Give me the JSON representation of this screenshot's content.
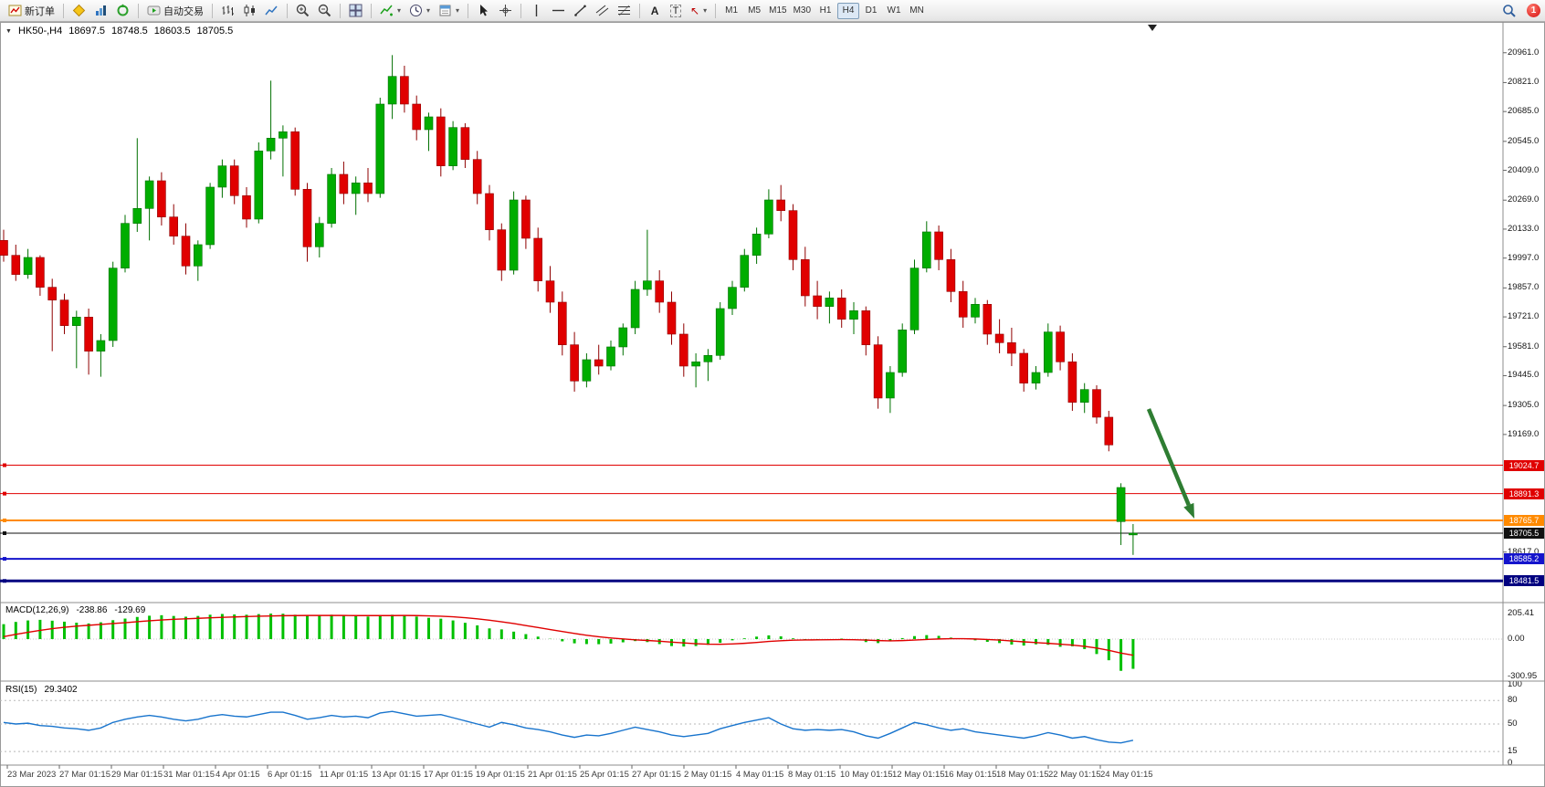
{
  "toolbar": {
    "new_order_label": "新订单",
    "autotrading_label": "自动交易",
    "timeframes": [
      "M1",
      "M5",
      "M15",
      "M30",
      "H1",
      "H4",
      "D1",
      "W1",
      "MN"
    ],
    "active_timeframe": "H4",
    "notification_count": "1",
    "glyphs": {
      "caret": "▾",
      "text_tool": "A",
      "label_tool": "T",
      "arrow_tool": "↖",
      "collapse": "▼"
    }
  },
  "chart_header": {
    "symbol_period": "HK50-,H4",
    "open": "18697.5",
    "high": "18748.5",
    "low": "18603.5",
    "close": "18705.5"
  },
  "price_axis": {
    "labels": [
      20961.0,
      20821.0,
      20685.0,
      20545.0,
      20409.0,
      20269.0,
      20133.0,
      19997.0,
      19857.0,
      19721.0,
      19581.0,
      19445.0,
      19305.0,
      19169.0,
      18617.0
    ]
  },
  "levels": [
    {
      "label": "19024.7",
      "price": 19024.7,
      "color": "#e00000",
      "width": 1
    },
    {
      "label": "18891.3",
      "price": 18891.3,
      "color": "#e00000",
      "width": 1
    },
    {
      "label": "18765.7",
      "price": 18765.7,
      "color": "#ff8a00",
      "width": 2
    },
    {
      "label": "18705.5",
      "price": 18705.5,
      "color": "#111111",
      "width": 1
    },
    {
      "label": "18585.2",
      "price": 18585.2,
      "color": "#1414cc",
      "width": 2
    },
    {
      "label": "18481.5",
      "price": 18481.5,
      "color": "#000080",
      "width": 3
    }
  ],
  "annotation": {
    "type": "arrow",
    "color": "#2e7d32",
    "from": [
      1258,
      448
    ],
    "to": [
      1308,
      568
    ]
  },
  "chart_data": {
    "type": "candlestick",
    "symbol": "HK50-",
    "timeframe": "H4",
    "up_color": "#00ad00",
    "up_border": "#007000",
    "down_color": "#e00000",
    "down_border": "#8f0000",
    "ylim": [
      18380,
      21080
    ],
    "dates": [
      "23 Mar 2023",
      "27 Mar 01:15",
      "29 Mar 01:15",
      "31 Mar 01:15",
      "4 Apr 01:15",
      "6 Apr 01:15",
      "11 Apr 01:15",
      "13 Apr 01:15",
      "17 Apr 01:15",
      "19 Apr 01:15",
      "21 Apr 01:15",
      "25 Apr 01:15",
      "27 Apr 01:15",
      "2 May 01:15",
      "4 May 01:15",
      "8 May 01:15",
      "10 May 01:15",
      "12 May 01:15",
      "16 May 01:15",
      "18 May 01:15",
      "22 May 01:15",
      "24 May 01:15"
    ],
    "candles": [
      [
        20080,
        20130,
        19980,
        20010
      ],
      [
        20010,
        20060,
        19890,
        19920
      ],
      [
        19920,
        20040,
        19900,
        20000
      ],
      [
        20000,
        20010,
        19820,
        19860
      ],
      [
        19860,
        19900,
        19560,
        19800
      ],
      [
        19800,
        19830,
        19640,
        19680
      ],
      [
        19680,
        19750,
        19480,
        19720
      ],
      [
        19720,
        19760,
        19450,
        19560
      ],
      [
        19560,
        19640,
        19440,
        19610
      ],
      [
        19610,
        19980,
        19580,
        19950
      ],
      [
        19950,
        20200,
        19930,
        20160
      ],
      [
        20160,
        20560,
        20120,
        20230
      ],
      [
        20230,
        20380,
        20080,
        20360
      ],
      [
        20360,
        20400,
        20150,
        20190
      ],
      [
        20190,
        20250,
        20060,
        20100
      ],
      [
        20100,
        20160,
        19920,
        19960
      ],
      [
        19960,
        20080,
        19890,
        20060
      ],
      [
        20060,
        20350,
        20040,
        20330
      ],
      [
        20330,
        20460,
        20280,
        20430
      ],
      [
        20430,
        20460,
        20250,
        20290
      ],
      [
        20290,
        20330,
        20140,
        20180
      ],
      [
        20180,
        20540,
        20160,
        20500
      ],
      [
        20500,
        20830,
        20460,
        20560
      ],
      [
        20560,
        20620,
        20380,
        20590
      ],
      [
        20590,
        20610,
        20290,
        20320
      ],
      [
        20320,
        20350,
        19980,
        20050
      ],
      [
        20050,
        20190,
        20000,
        20160
      ],
      [
        20160,
        20420,
        20140,
        20390
      ],
      [
        20390,
        20450,
        20250,
        20300
      ],
      [
        20300,
        20380,
        20200,
        20350
      ],
      [
        20350,
        20420,
        20260,
        20300
      ],
      [
        20300,
        20750,
        20280,
        20720
      ],
      [
        20720,
        20950,
        20650,
        20850
      ],
      [
        20850,
        20900,
        20680,
        20720
      ],
      [
        20720,
        20760,
        20550,
        20600
      ],
      [
        20600,
        20680,
        20500,
        20660
      ],
      [
        20660,
        20700,
        20380,
        20430
      ],
      [
        20430,
        20640,
        20410,
        20610
      ],
      [
        20610,
        20630,
        20420,
        20460
      ],
      [
        20460,
        20500,
        20250,
        20300
      ],
      [
        20300,
        20340,
        20080,
        20130
      ],
      [
        20130,
        20160,
        19890,
        19940
      ],
      [
        19940,
        20310,
        19920,
        20270
      ],
      [
        20270,
        20290,
        20040,
        20090
      ],
      [
        20090,
        20140,
        19840,
        19890
      ],
      [
        19890,
        19960,
        19740,
        19790
      ],
      [
        19790,
        19840,
        19540,
        19590
      ],
      [
        19590,
        19650,
        19370,
        19420
      ],
      [
        19420,
        19550,
        19390,
        19520
      ],
      [
        19520,
        19590,
        19450,
        19490
      ],
      [
        19490,
        19610,
        19470,
        19580
      ],
      [
        19580,
        19690,
        19540,
        19670
      ],
      [
        19670,
        19890,
        19640,
        19850
      ],
      [
        19850,
        20130,
        19820,
        19890
      ],
      [
        19890,
        19940,
        19740,
        19790
      ],
      [
        19790,
        19840,
        19590,
        19640
      ],
      [
        19640,
        19690,
        19440,
        19490
      ],
      [
        19490,
        19550,
        19390,
        19510
      ],
      [
        19510,
        19570,
        19420,
        19540
      ],
      [
        19540,
        19790,
        19520,
        19760
      ],
      [
        19760,
        19890,
        19730,
        19860
      ],
      [
        19860,
        20040,
        19840,
        20010
      ],
      [
        20010,
        20140,
        19970,
        20110
      ],
      [
        20110,
        20320,
        20090,
        20270
      ],
      [
        20270,
        20340,
        20170,
        20220
      ],
      [
        20220,
        20250,
        19940,
        19990
      ],
      [
        19990,
        20050,
        19770,
        19820
      ],
      [
        19820,
        19890,
        19710,
        19770
      ],
      [
        19770,
        19840,
        19690,
        19810
      ],
      [
        19810,
        19850,
        19670,
        19710
      ],
      [
        19710,
        19790,
        19640,
        19750
      ],
      [
        19750,
        19770,
        19540,
        19590
      ],
      [
        19590,
        19630,
        19290,
        19340
      ],
      [
        19340,
        19490,
        19270,
        19460
      ],
      [
        19460,
        19690,
        19440,
        19660
      ],
      [
        19660,
        19990,
        19640,
        19950
      ],
      [
        19950,
        20170,
        19930,
        20120
      ],
      [
        20120,
        20150,
        19940,
        19990
      ],
      [
        19990,
        20040,
        19790,
        19840
      ],
      [
        19840,
        19890,
        19670,
        19720
      ],
      [
        19720,
        19810,
        19690,
        19780
      ],
      [
        19780,
        19800,
        19590,
        19640
      ],
      [
        19640,
        19710,
        19550,
        19600
      ],
      [
        19600,
        19670,
        19490,
        19550
      ],
      [
        19550,
        19570,
        19370,
        19410
      ],
      [
        19410,
        19490,
        19380,
        19460
      ],
      [
        19460,
        19690,
        19440,
        19650
      ],
      [
        19650,
        19680,
        19470,
        19510
      ],
      [
        19510,
        19550,
        19280,
        19320
      ],
      [
        19320,
        19410,
        19270,
        19380
      ],
      [
        19380,
        19400,
        19220,
        19250
      ],
      [
        19250,
        19280,
        19090,
        19120
      ],
      [
        18760,
        18940,
        18650,
        18920
      ],
      [
        18697.5,
        18748.5,
        18603.5,
        18705.5
      ]
    ],
    "macd": {
      "label": "MACD(12,26,9)",
      "values": [
        "-238.86",
        "-129.69"
      ],
      "axis": [
        "205.41",
        "0.00",
        "-300.95"
      ],
      "histogram_color": "#00c000",
      "signal_color": "#e00000",
      "histogram": [
        120,
        138,
        150,
        155,
        148,
        140,
        132,
        126,
        135,
        152,
        165,
        178,
        188,
        192,
        186,
        180,
        186,
        196,
        202,
        198,
        196,
        201,
        205,
        204,
        196,
        190,
        191,
        196,
        191,
        186,
        181,
        191,
        196,
        191,
        181,
        171,
        164,
        150,
        131,
        110,
        86,
        78,
        60,
        40,
        20,
        2,
        -18,
        -34,
        -40,
        -41,
        -36,
        -26,
        -16,
        -24,
        -40,
        -56,
        -60,
        -56,
        -46,
        -30,
        -10,
        6,
        20,
        30,
        22,
        6,
        -4,
        -6,
        0,
        4,
        -4,
        -24,
        -32,
        -16,
        8,
        24,
        32,
        26,
        12,
        4,
        -10,
        -22,
        -32,
        -44,
        -52,
        -42,
        -46,
        -62,
        -58,
        -80,
        -120,
        -170,
        -255,
        -239
      ],
      "signal": [
        20,
        38,
        55,
        70,
        84,
        95,
        104,
        111,
        118,
        125,
        132,
        140,
        147,
        154,
        159,
        163,
        167,
        171,
        175,
        178,
        181,
        184,
        186,
        188,
        189,
        190,
        190,
        190,
        190,
        189,
        189,
        189,
        189,
        190,
        189,
        187,
        184,
        179,
        172,
        163,
        152,
        139,
        125,
        109,
        93,
        77,
        61,
        45,
        31,
        19,
        9,
        1,
        -6,
        -11,
        -17,
        -24,
        -31,
        -37,
        -41,
        -42,
        -39,
        -34,
        -27,
        -19,
        -13,
        -9,
        -7,
        -6,
        -5,
        -4,
        -5,
        -8,
        -12,
        -14,
        -12,
        -8,
        -3,
        1,
        3,
        3,
        1,
        -3,
        -8,
        -15,
        -22,
        -28,
        -34,
        -41,
        -48,
        -58,
        -72,
        -90,
        -112,
        -129.69
      ]
    },
    "rsi": {
      "label": "RSI(15)",
      "value": "29.3402",
      "axis": [
        "100",
        "80",
        "50",
        "15",
        "0"
      ],
      "levels": [
        80,
        50,
        15
      ],
      "line_color": "#1874cd",
      "series": [
        52,
        50,
        51,
        48,
        47,
        45,
        44,
        42,
        45,
        52,
        56,
        59,
        61,
        59,
        56,
        54,
        56,
        60,
        62,
        60,
        59,
        62,
        65,
        65,
        61,
        56,
        58,
        61,
        59,
        60,
        58,
        64,
        66,
        63,
        60,
        61,
        62,
        58,
        54,
        50,
        46,
        52,
        49,
        45,
        43,
        40,
        36,
        33,
        36,
        35,
        38,
        42,
        46,
        43,
        40,
        36,
        34,
        36,
        38,
        44,
        48,
        52,
        55,
        58,
        50,
        44,
        42,
        43,
        42,
        43,
        40,
        35,
        32,
        38,
        45,
        52,
        49,
        45,
        42,
        44,
        40,
        38,
        36,
        34,
        32,
        35,
        39,
        36,
        32,
        34,
        30,
        27,
        26,
        29.34
      ]
    }
  }
}
